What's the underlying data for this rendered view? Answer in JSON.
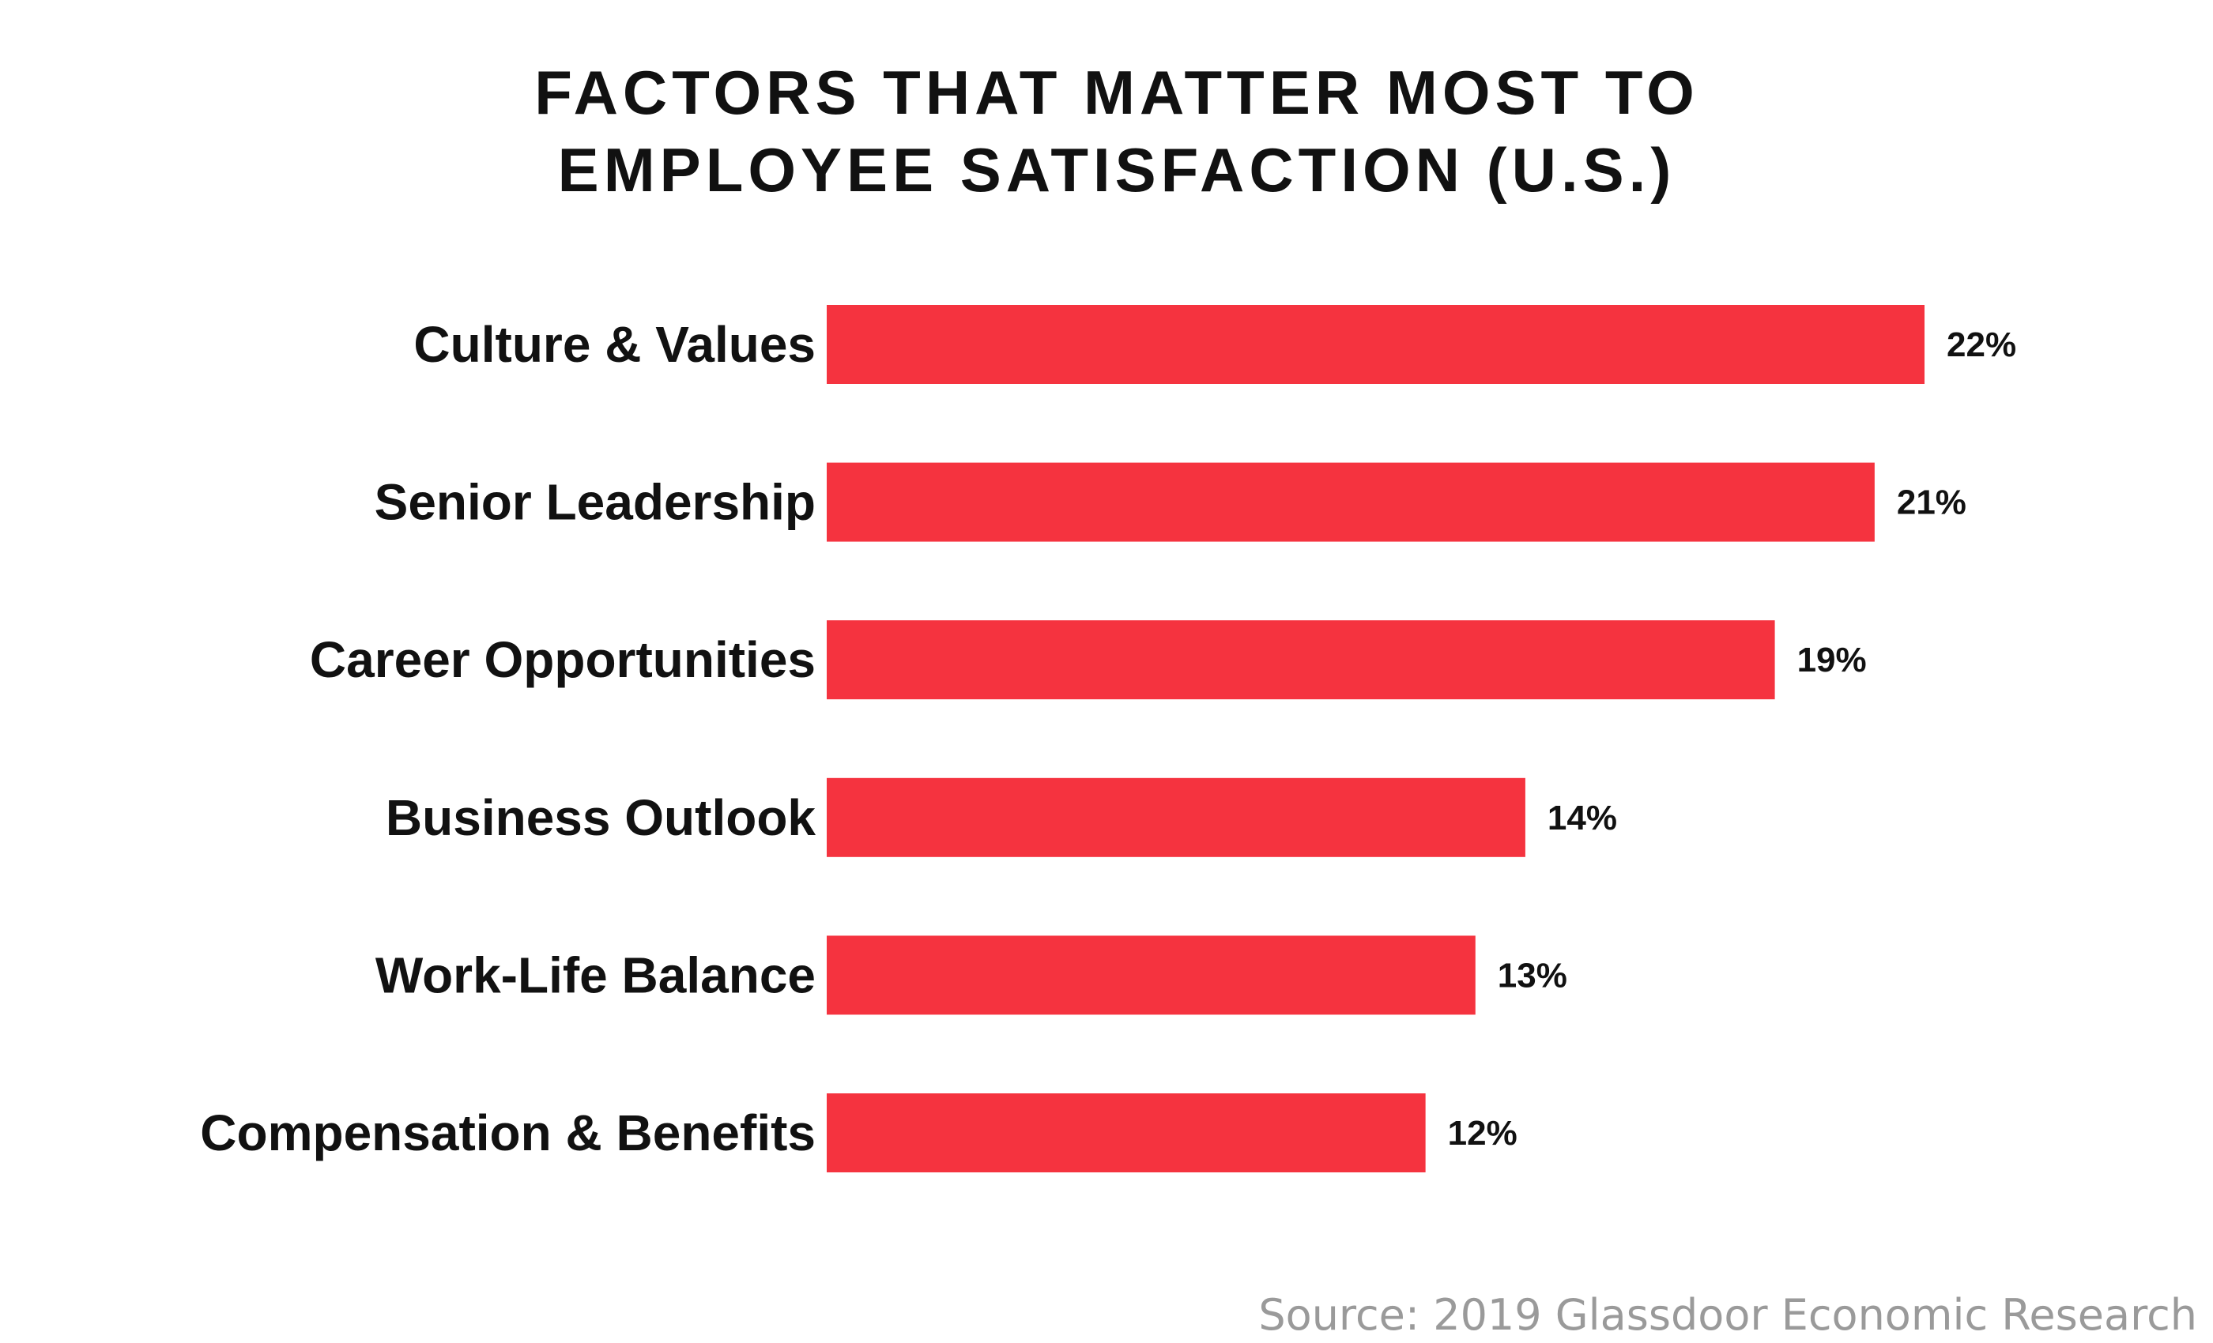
{
  "chart_data": {
    "type": "bar",
    "orientation": "horizontal",
    "title": [
      "FACTORS THAT MATTER MOST TO",
      "EMPLOYEE SATISFACTION (U.S.)"
    ],
    "categories": [
      "Culture & Values",
      "Senior Leadership",
      "Career Opportunities",
      "Business Outlook",
      "Work-Life Balance",
      "Compensation & Benefits"
    ],
    "values": [
      22,
      21,
      19,
      14,
      13,
      12
    ],
    "data_labels": [
      "22%",
      "21%",
      "19%",
      "14%",
      "13%",
      "12%"
    ],
    "unit": "%",
    "xlim": [
      0,
      22
    ],
    "grid": false,
    "axes_visible": false,
    "bar_color": "#f5333f",
    "source": "Source: 2019 Glassdoor Economic Research"
  }
}
